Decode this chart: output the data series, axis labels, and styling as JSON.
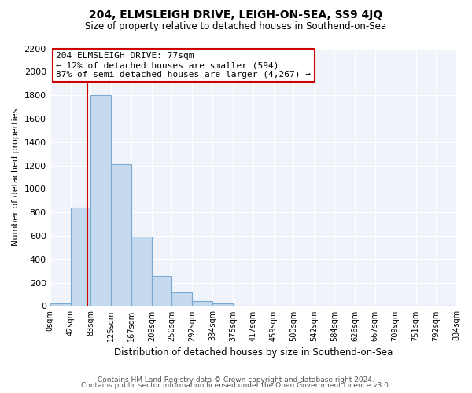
{
  "title": "204, ELMSLEIGH DRIVE, LEIGH-ON-SEA, SS9 4JQ",
  "subtitle": "Size of property relative to detached houses in Southend-on-Sea",
  "xlabel": "Distribution of detached houses by size in Southend-on-Sea",
  "ylabel": "Number of detached properties",
  "bar_edges": [
    0,
    42,
    83,
    125,
    167,
    209,
    250,
    292,
    334,
    375,
    417,
    459,
    500,
    542,
    584,
    626,
    667,
    709,
    751,
    792,
    834
  ],
  "bar_heights": [
    20,
    840,
    1800,
    1210,
    590,
    255,
    115,
    40,
    20,
    0,
    0,
    0,
    0,
    0,
    0,
    0,
    0,
    0,
    0,
    0
  ],
  "bar_color": "#c5d9ef",
  "bar_edge_color": "#7aaad4",
  "vline_x": 77,
  "vline_color": "#cc0000",
  "annotation_line1": "204 ELMSLEIGH DRIVE: 77sqm",
  "annotation_line2": "← 12% of detached houses are smaller (594)",
  "annotation_line3": "87% of semi-detached houses are larger (4,267) →",
  "annotation_box_color": "#ffffff",
  "annotation_box_edge": "#cc0000",
  "ylim": [
    0,
    2200
  ],
  "yticks": [
    0,
    200,
    400,
    600,
    800,
    1000,
    1200,
    1400,
    1600,
    1800,
    2000,
    2200
  ],
  "tick_labels": [
    "0sqm",
    "42sqm",
    "83sqm",
    "125sqm",
    "167sqm",
    "209sqm",
    "250sqm",
    "292sqm",
    "334sqm",
    "375sqm",
    "417sqm",
    "459sqm",
    "500sqm",
    "542sqm",
    "584sqm",
    "626sqm",
    "667sqm",
    "709sqm",
    "751sqm",
    "792sqm",
    "834sqm"
  ],
  "footer_line1": "Contains HM Land Registry data © Crown copyright and database right 2024.",
  "footer_line2": "Contains public sector information licensed under the Open Government Licence v3.0.",
  "bg_color": "#ffffff",
  "plot_bg_color": "#f0f4fa"
}
